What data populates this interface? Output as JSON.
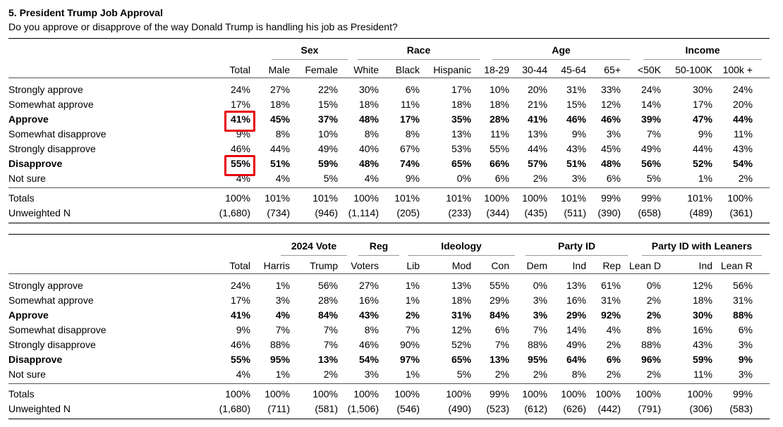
{
  "title": "5. President Trump Job Approval",
  "subtitle": "Do you approve or disapprove of the way Donald Trump is handling his job as President?",
  "tables": [
    {
      "groups": [
        {
          "label": "Sex"
        },
        {
          "label": "Race"
        },
        {
          "label": "Age"
        },
        {
          "label": "Income"
        }
      ],
      "columns": [
        "Total",
        "Male",
        "Female",
        "White",
        "Black",
        "Hispanic",
        "18-29",
        "30-44",
        "45-64",
        "65+",
        "<50K",
        "50-100K",
        "100k +"
      ],
      "rows": [
        {
          "label": "Strongly approve",
          "bold": false,
          "values": [
            "24%",
            "27%",
            "22%",
            "30%",
            "6%",
            "17%",
            "10%",
            "20%",
            "31%",
            "33%",
            "24%",
            "30%",
            "24%"
          ]
        },
        {
          "label": "Somewhat approve",
          "bold": false,
          "values": [
            "17%",
            "18%",
            "15%",
            "18%",
            "11%",
            "18%",
            "18%",
            "21%",
            "15%",
            "12%",
            "14%",
            "17%",
            "20%"
          ]
        },
        {
          "label": "Approve",
          "bold": true,
          "values": [
            "41%",
            "45%",
            "37%",
            "48%",
            "17%",
            "35%",
            "28%",
            "41%",
            "46%",
            "46%",
            "39%",
            "47%",
            "44%"
          ]
        },
        {
          "label": "Somewhat disapprove",
          "bold": false,
          "values": [
            "9%",
            "8%",
            "10%",
            "8%",
            "8%",
            "13%",
            "11%",
            "13%",
            "9%",
            "3%",
            "7%",
            "9%",
            "11%"
          ]
        },
        {
          "label": "Strongly disapprove",
          "bold": false,
          "values": [
            "46%",
            "44%",
            "49%",
            "40%",
            "67%",
            "53%",
            "55%",
            "44%",
            "43%",
            "45%",
            "49%",
            "44%",
            "43%"
          ]
        },
        {
          "label": "Disapprove",
          "bold": true,
          "values": [
            "55%",
            "51%",
            "59%",
            "48%",
            "74%",
            "65%",
            "66%",
            "57%",
            "51%",
            "48%",
            "56%",
            "52%",
            "54%"
          ]
        },
        {
          "label": "Not sure",
          "bold": false,
          "values": [
            "4%",
            "4%",
            "5%",
            "4%",
            "9%",
            "0%",
            "6%",
            "2%",
            "3%",
            "6%",
            "5%",
            "1%",
            "2%"
          ]
        }
      ],
      "totals": {
        "label": "Totals",
        "values": [
          "100%",
          "101%",
          "101%",
          "100%",
          "101%",
          "101%",
          "100%",
          "100%",
          "101%",
          "99%",
          "99%",
          "101%",
          "100%"
        ]
      },
      "unweighted": {
        "label": "Unweighted N",
        "values": [
          "(1,680)",
          "(734)",
          "(946)",
          "(1,114)",
          "(205)",
          "(233)",
          "(344)",
          "(435)",
          "(511)",
          "(390)",
          "(658)",
          "(489)",
          "(361)"
        ]
      }
    },
    {
      "groups": [
        {
          "label": "2024 Vote"
        },
        {
          "label": "Reg"
        },
        {
          "label": "Ideology"
        },
        {
          "label": "Party ID"
        },
        {
          "label": "Party ID with Leaners"
        }
      ],
      "columns": [
        "Total",
        "Harris",
        "Trump",
        "Voters",
        "Lib",
        "Mod",
        "Con",
        "Dem",
        "Ind",
        "Rep",
        "Lean D",
        "Ind",
        "Lean R"
      ],
      "rows": [
        {
          "label": "Strongly approve",
          "bold": false,
          "values": [
            "24%",
            "1%",
            "56%",
            "27%",
            "1%",
            "13%",
            "55%",
            "0%",
            "13%",
            "61%",
            "0%",
            "12%",
            "56%"
          ]
        },
        {
          "label": "Somewhat approve",
          "bold": false,
          "values": [
            "17%",
            "3%",
            "28%",
            "16%",
            "1%",
            "18%",
            "29%",
            "3%",
            "16%",
            "31%",
            "2%",
            "18%",
            "31%"
          ]
        },
        {
          "label": "Approve",
          "bold": true,
          "values": [
            "41%",
            "4%",
            "84%",
            "43%",
            "2%",
            "31%",
            "84%",
            "3%",
            "29%",
            "92%",
            "2%",
            "30%",
            "88%"
          ]
        },
        {
          "label": "Somewhat disapprove",
          "bold": false,
          "values": [
            "9%",
            "7%",
            "7%",
            "8%",
            "7%",
            "12%",
            "6%",
            "7%",
            "14%",
            "4%",
            "8%",
            "16%",
            "6%"
          ]
        },
        {
          "label": "Strongly disapprove",
          "bold": false,
          "values": [
            "46%",
            "88%",
            "7%",
            "46%",
            "90%",
            "52%",
            "7%",
            "88%",
            "49%",
            "2%",
            "88%",
            "43%",
            "3%"
          ]
        },
        {
          "label": "Disapprove",
          "bold": true,
          "values": [
            "55%",
            "95%",
            "13%",
            "54%",
            "97%",
            "65%",
            "13%",
            "95%",
            "64%",
            "6%",
            "96%",
            "59%",
            "9%"
          ]
        },
        {
          "label": "Not sure",
          "bold": false,
          "values": [
            "4%",
            "1%",
            "2%",
            "3%",
            "1%",
            "5%",
            "2%",
            "2%",
            "8%",
            "2%",
            "2%",
            "11%",
            "3%"
          ]
        }
      ],
      "totals": {
        "label": "Totals",
        "values": [
          "100%",
          "100%",
          "100%",
          "100%",
          "100%",
          "100%",
          "99%",
          "100%",
          "100%",
          "100%",
          "100%",
          "100%",
          "99%"
        ]
      },
      "unweighted": {
        "label": "Unweighted N",
        "values": [
          "(1,680)",
          "(711)",
          "(581)",
          "(1,506)",
          "(546)",
          "(490)",
          "(523)",
          "(612)",
          "(626)",
          "(442)",
          "(791)",
          "(306)",
          "(583)"
        ]
      }
    }
  ],
  "highlight_color": "#e6000a"
}
